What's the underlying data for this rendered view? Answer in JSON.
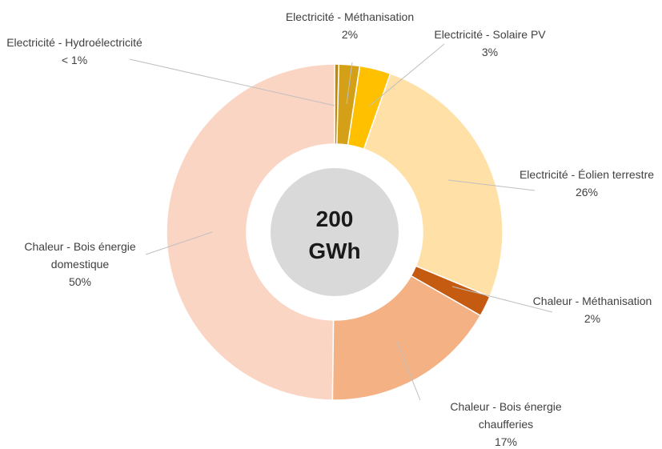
{
  "chart_data": {
    "type": "donut",
    "center_label": [
      "200",
      "GWh"
    ],
    "categories": [
      "Electricité - Hydroélectricité",
      "Electricité - Méthanisation",
      "Electricité - Solaire PV",
      "Electricité - Éolien terrestre",
      "Chaleur - Méthanisation",
      "Chaleur - Bois énergie chaufferies",
      "Chaleur - Bois énergie domestique"
    ],
    "values": [
      0.4,
      2,
      3,
      26,
      2,
      17,
      50
    ],
    "value_labels": [
      "< 1%",
      "2%",
      "3%",
      "26%",
      "2%",
      "17%",
      "50%"
    ],
    "colors": [
      "#c08a08",
      "#d4a017",
      "#ffc000",
      "#ffe0a6",
      "#c55a11",
      "#f4b183",
      "#fbd5c4"
    ]
  }
}
